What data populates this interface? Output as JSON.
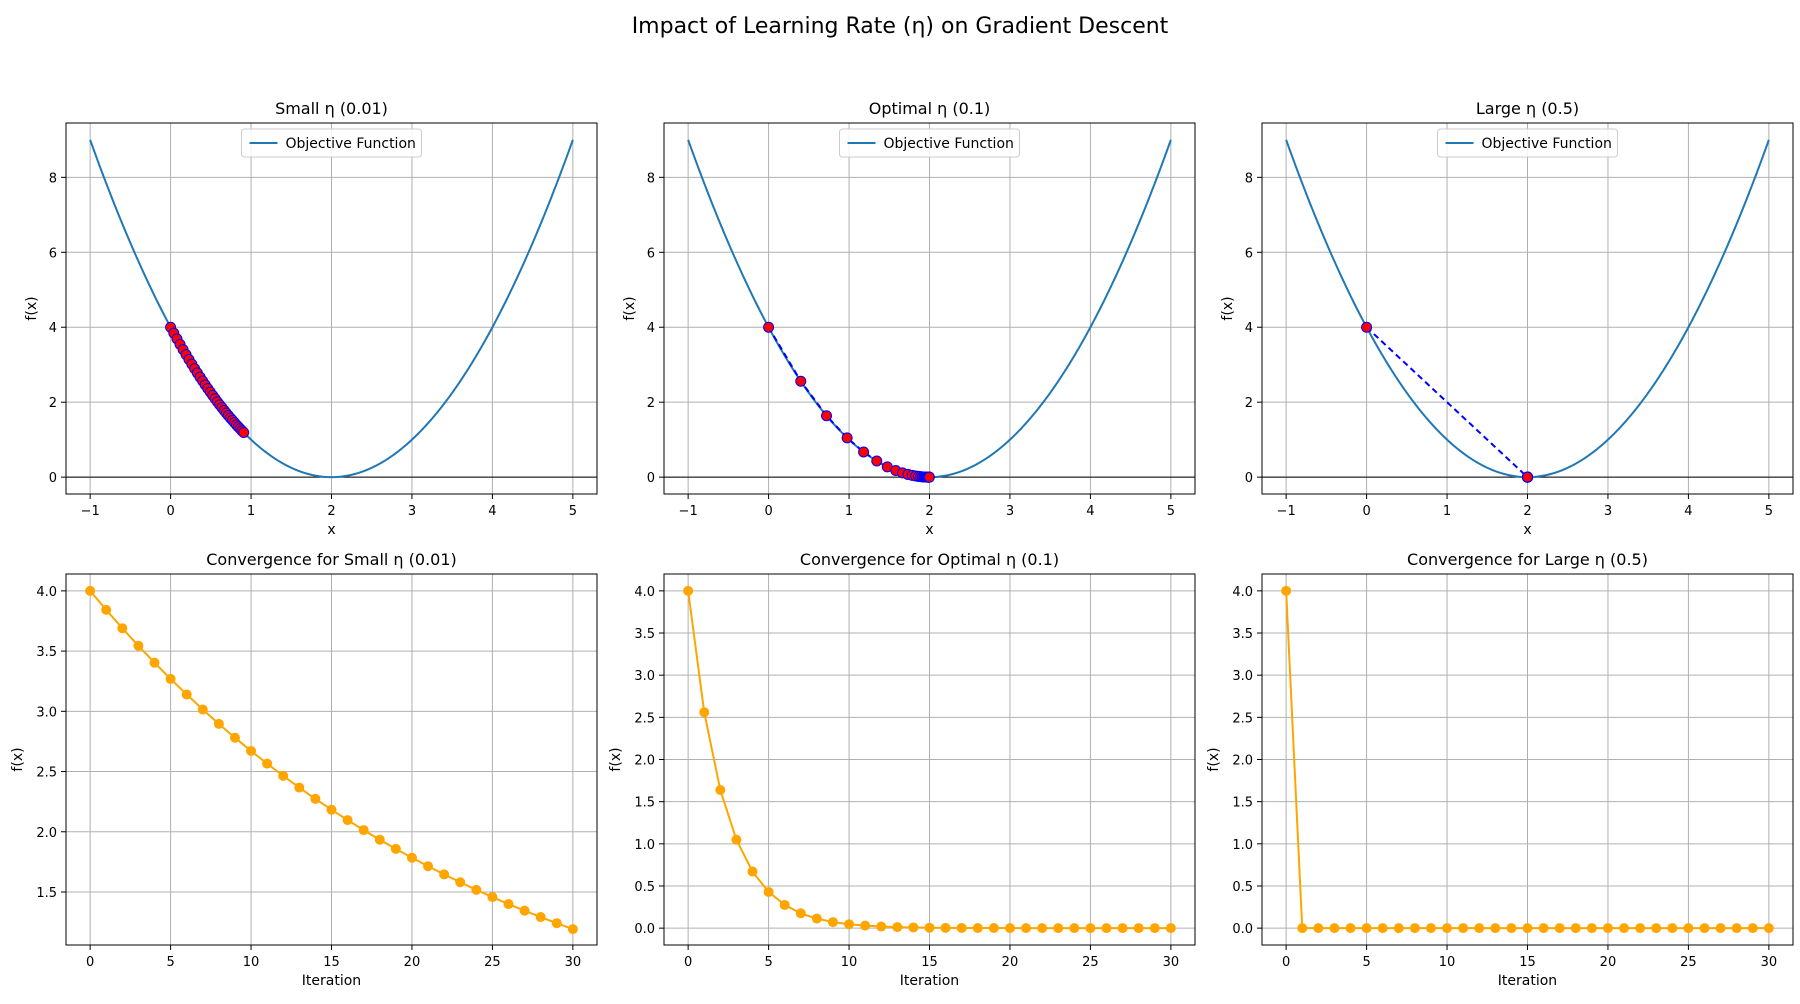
{
  "figure": {
    "title": "Impact of Learning Rate (η) on Gradient Descent"
  },
  "colors": {
    "objective": "#1f77b4",
    "path_line": "#0000ff",
    "path_marker": "#ff0000",
    "convergence": "#ffa500",
    "grid": "#b0b0b0",
    "axis": "#000000"
  },
  "chart_data": [
    {
      "type": "line",
      "title": "Small η (0.01)",
      "xlabel": "x",
      "ylabel": "f(x)",
      "xlim": [
        -1.3,
        5.3
      ],
      "ylim": [
        -0.45,
        9.45
      ],
      "xticks": [
        -1,
        0,
        1,
        2,
        3,
        4,
        5
      ],
      "yticks": [
        0,
        2,
        4,
        6,
        8
      ],
      "grid": true,
      "legend": "upper center",
      "legend_entries": [
        "Objective Function"
      ],
      "objective": {
        "name": "Objective Function",
        "x_range": [
          -1,
          5
        ],
        "function": "(x-2)^2"
      },
      "descent_path": {
        "learning_rate": 0.01,
        "x0": 0,
        "iterations": 30
      }
    },
    {
      "type": "line",
      "title": "Optimal η (0.1)",
      "xlabel": "x",
      "ylabel": "f(x)",
      "xlim": [
        -1.3,
        5.3
      ],
      "ylim": [
        -0.45,
        9.45
      ],
      "xticks": [
        -1,
        0,
        1,
        2,
        3,
        4,
        5
      ],
      "yticks": [
        0,
        2,
        4,
        6,
        8
      ],
      "grid": true,
      "legend": "upper center",
      "legend_entries": [
        "Objective Function"
      ],
      "objective": {
        "name": "Objective Function",
        "x_range": [
          -1,
          5
        ],
        "function": "(x-2)^2"
      },
      "descent_path": {
        "learning_rate": 0.1,
        "x0": 0,
        "iterations": 30
      }
    },
    {
      "type": "line",
      "title": "Large η (0.5)",
      "xlabel": "x",
      "ylabel": "f(x)",
      "xlim": [
        -1.3,
        5.3
      ],
      "ylim": [
        -0.45,
        9.45
      ],
      "xticks": [
        -1,
        0,
        1,
        2,
        3,
        4,
        5
      ],
      "yticks": [
        0,
        2,
        4,
        6,
        8
      ],
      "grid": true,
      "legend": "upper center",
      "legend_entries": [
        "Objective Function"
      ],
      "objective": {
        "name": "Objective Function",
        "x_range": [
          -1,
          5
        ],
        "function": "(x-2)^2"
      },
      "descent_path": {
        "learning_rate": 0.5,
        "x0": 0,
        "iterations": 30
      }
    },
    {
      "type": "line",
      "title": "Convergence for Small η (0.01)",
      "xlabel": "Iteration",
      "ylabel": "f(x)",
      "xlim": [
        -1.5,
        31.5
      ],
      "ylim": [
        1.06,
        4.14
      ],
      "xticks": [
        0,
        5,
        10,
        15,
        20,
        25,
        30
      ],
      "yticks": [
        1.5,
        2.0,
        2.5,
        3.0,
        3.5,
        4.0
      ],
      "ytick_labels": [
        "1.5",
        "2.0",
        "2.5",
        "3.0",
        "3.5",
        "4.0"
      ],
      "grid": true,
      "learning_rate": 0.01,
      "x": [
        0,
        1,
        2,
        3,
        4,
        5,
        6,
        7,
        8,
        9,
        10,
        11,
        12,
        13,
        14,
        15,
        16,
        17,
        18,
        19,
        20,
        21,
        22,
        23,
        24,
        25,
        26,
        27,
        28,
        29,
        30
      ],
      "values": [
        4.0,
        3.842,
        3.69,
        3.544,
        3.404,
        3.269,
        3.14,
        3.015,
        2.896,
        2.781,
        2.671,
        2.566,
        2.464,
        2.367,
        2.273,
        2.183,
        2.097,
        2.014,
        1.934,
        1.858,
        1.784,
        1.714,
        1.646,
        1.581,
        1.518,
        1.458,
        1.4,
        1.345,
        1.292,
        1.241,
        1.192
      ]
    },
    {
      "type": "line",
      "title": "Convergence for Optimal η (0.1)",
      "xlabel": "Iteration",
      "ylabel": "f(x)",
      "xlim": [
        -1.5,
        31.5
      ],
      "ylim": [
        -0.2,
        4.2
      ],
      "xticks": [
        0,
        5,
        10,
        15,
        20,
        25,
        30
      ],
      "yticks": [
        0,
        0.5,
        1.0,
        1.5,
        2.0,
        2.5,
        3.0,
        3.5,
        4.0
      ],
      "ytick_labels": [
        "0.0",
        "0.5",
        "1.0",
        "1.5",
        "2.0",
        "2.5",
        "3.0",
        "3.5",
        "4.0"
      ],
      "grid": true,
      "learning_rate": 0.1,
      "x": [
        0,
        1,
        2,
        3,
        4,
        5,
        6,
        7,
        8,
        9,
        10,
        11,
        12,
        13,
        14,
        15,
        16,
        17,
        18,
        19,
        20,
        21,
        22,
        23,
        24,
        25,
        26,
        27,
        28,
        29,
        30
      ],
      "values": [
        4.0,
        2.56,
        1.638,
        1.049,
        0.671,
        0.429,
        0.275,
        0.176,
        0.113,
        0.072,
        0.046,
        0.03,
        0.019,
        0.012,
        0.008,
        0.005,
        0.003,
        0.002,
        0.001,
        0.001,
        0.0,
        0.0,
        0.0,
        0.0,
        0.0,
        0.0,
        0.0,
        0.0,
        0.0,
        0.0,
        0.0
      ]
    },
    {
      "type": "line",
      "title": "Convergence for Large η (0.5)",
      "xlabel": "Iteration",
      "ylabel": "f(x)",
      "xlim": [
        -1.5,
        31.5
      ],
      "ylim": [
        -0.2,
        4.2
      ],
      "xticks": [
        0,
        5,
        10,
        15,
        20,
        25,
        30
      ],
      "yticks": [
        0,
        0.5,
        1.0,
        1.5,
        2.0,
        2.5,
        3.0,
        3.5,
        4.0
      ],
      "ytick_labels": [
        "0.0",
        "0.5",
        "1.0",
        "1.5",
        "2.0",
        "2.5",
        "3.0",
        "3.5",
        "4.0"
      ],
      "grid": true,
      "learning_rate": 0.5,
      "x": [
        0,
        1,
        2,
        3,
        4,
        5,
        6,
        7,
        8,
        9,
        10,
        11,
        12,
        13,
        14,
        15,
        16,
        17,
        18,
        19,
        20,
        21,
        22,
        23,
        24,
        25,
        26,
        27,
        28,
        29,
        30
      ],
      "values": [
        4.0,
        0.0,
        0.0,
        0.0,
        0.0,
        0.0,
        0.0,
        0.0,
        0.0,
        0.0,
        0.0,
        0.0,
        0.0,
        0.0,
        0.0,
        0.0,
        0.0,
        0.0,
        0.0,
        0.0,
        0.0,
        0.0,
        0.0,
        0.0,
        0.0,
        0.0,
        0.0,
        0.0,
        0.0,
        0.0,
        0.0
      ]
    }
  ]
}
